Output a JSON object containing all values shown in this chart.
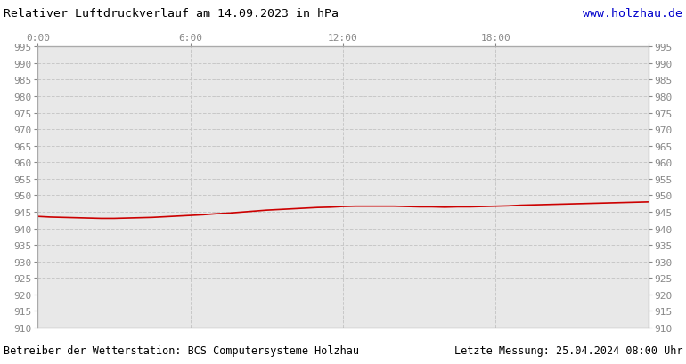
{
  "title": "Relativer Luftdruckverlauf am 14.09.2023 in hPa",
  "url_text": "www.holzhau.de",
  "footer_left": "Betreiber der Wetterstation: BCS Computersysteme Holzhau",
  "footer_right": "Letzte Messung: 25.04.2024 08:00 Uhr",
  "x_ticks": [
    0,
    6,
    12,
    18,
    24
  ],
  "x_tick_labels": [
    "0:00",
    "6:00",
    "12:00",
    "18:00",
    ""
  ],
  "y_min": 910,
  "y_max": 995,
  "y_step": 5,
  "line_color": "#cc0000",
  "line_width": 1.2,
  "fig_bg_color": "#ffffff",
  "plot_bg_color": "#e8e8e8",
  "grid_color": "#c8c8c8",
  "title_color": "#000000",
  "url_color": "#0000cc",
  "footer_color": "#000000",
  "tick_color": "#888888",
  "pressure_x": [
    0,
    0.5,
    1,
    1.5,
    2,
    2.5,
    3,
    3.5,
    4,
    4.5,
    5,
    5.5,
    6,
    6.5,
    7,
    7.5,
    8,
    8.5,
    9,
    9.5,
    10,
    10.5,
    11,
    11.5,
    12,
    12.5,
    13,
    13.5,
    14,
    14.5,
    15,
    15.5,
    16,
    16.5,
    17,
    17.5,
    18,
    18.5,
    19,
    19.5,
    20,
    20.5,
    21,
    21.5,
    22,
    22.5,
    23,
    23.5,
    24
  ],
  "pressure_y": [
    943.6,
    943.4,
    943.3,
    943.2,
    943.1,
    943.0,
    943.0,
    943.1,
    943.2,
    943.3,
    943.5,
    943.7,
    943.9,
    944.1,
    944.4,
    944.6,
    944.9,
    945.2,
    945.5,
    945.7,
    945.9,
    946.1,
    946.3,
    946.4,
    946.6,
    946.7,
    946.7,
    946.7,
    946.7,
    946.6,
    946.5,
    946.5,
    946.4,
    946.5,
    946.5,
    946.6,
    946.7,
    946.8,
    947.0,
    947.1,
    947.2,
    947.3,
    947.4,
    947.5,
    947.6,
    947.7,
    947.8,
    947.9,
    948.0
  ]
}
